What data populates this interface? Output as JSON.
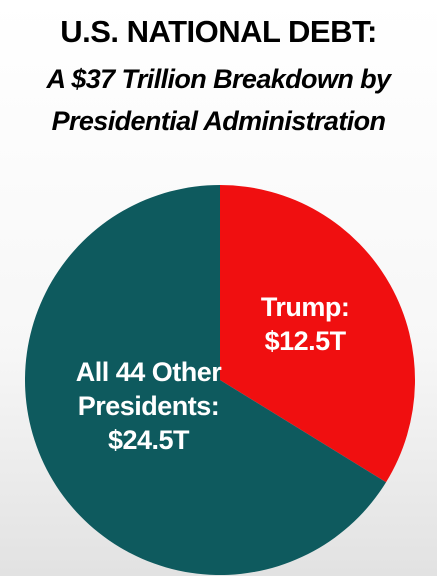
{
  "chart_data": {
    "type": "pie",
    "title": "U.S. NATIONAL DEBT:",
    "subtitle": "A $37 Trillion Breakdown by Presidential Administration",
    "categories": [
      "Trump:",
      "All 44 Other Presidents:"
    ],
    "values": [
      12.5,
      24.5
    ],
    "value_labels": [
      "$12.5T",
      "$24.5T"
    ],
    "colors": [
      "#f00f10",
      "#0e5a5e"
    ]
  }
}
